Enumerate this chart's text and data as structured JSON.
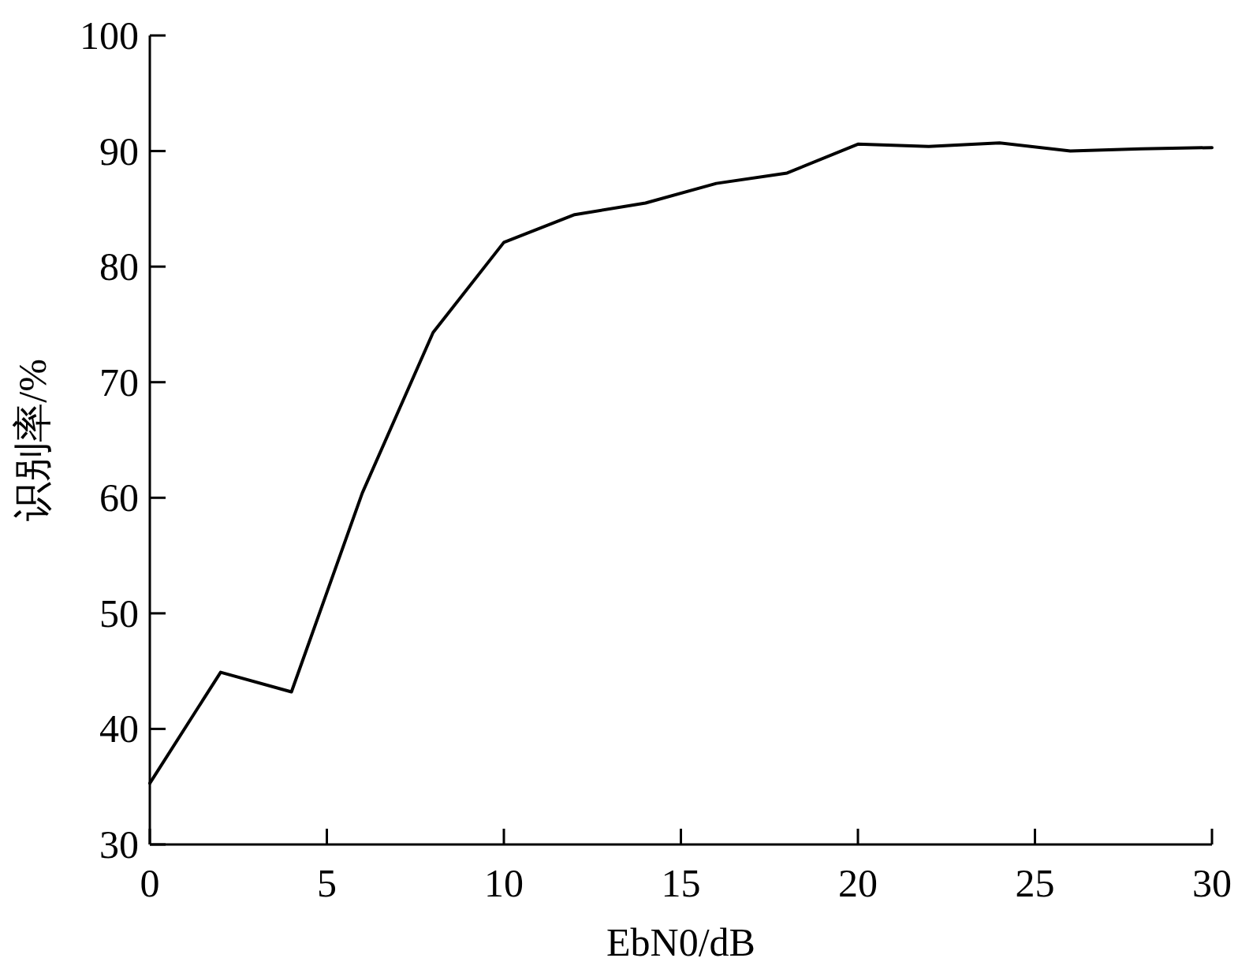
{
  "chart_data": {
    "type": "line",
    "xlabel": "EbN0/dB",
    "ylabel": "识别率/%",
    "x": [
      0,
      2,
      4,
      6,
      8,
      10,
      12,
      14,
      16,
      18,
      20,
      22,
      24,
      26,
      28,
      30
    ],
    "series": [
      {
        "color": "#000000",
        "values": [
          35.3,
          44.9,
          43.2,
          60.4,
          74.3,
          82.1,
          84.5,
          85.5,
          87.2,
          88.1,
          90.6,
          90.4,
          90.7,
          90.0,
          90.2,
          90.3
        ]
      }
    ],
    "xlim": [
      0,
      30
    ],
    "ylim": [
      30,
      100
    ],
    "xticks": [
      0,
      5,
      10,
      15,
      20,
      25,
      30
    ],
    "yticks": [
      30,
      40,
      50,
      60,
      70,
      80,
      90,
      100
    ]
  }
}
